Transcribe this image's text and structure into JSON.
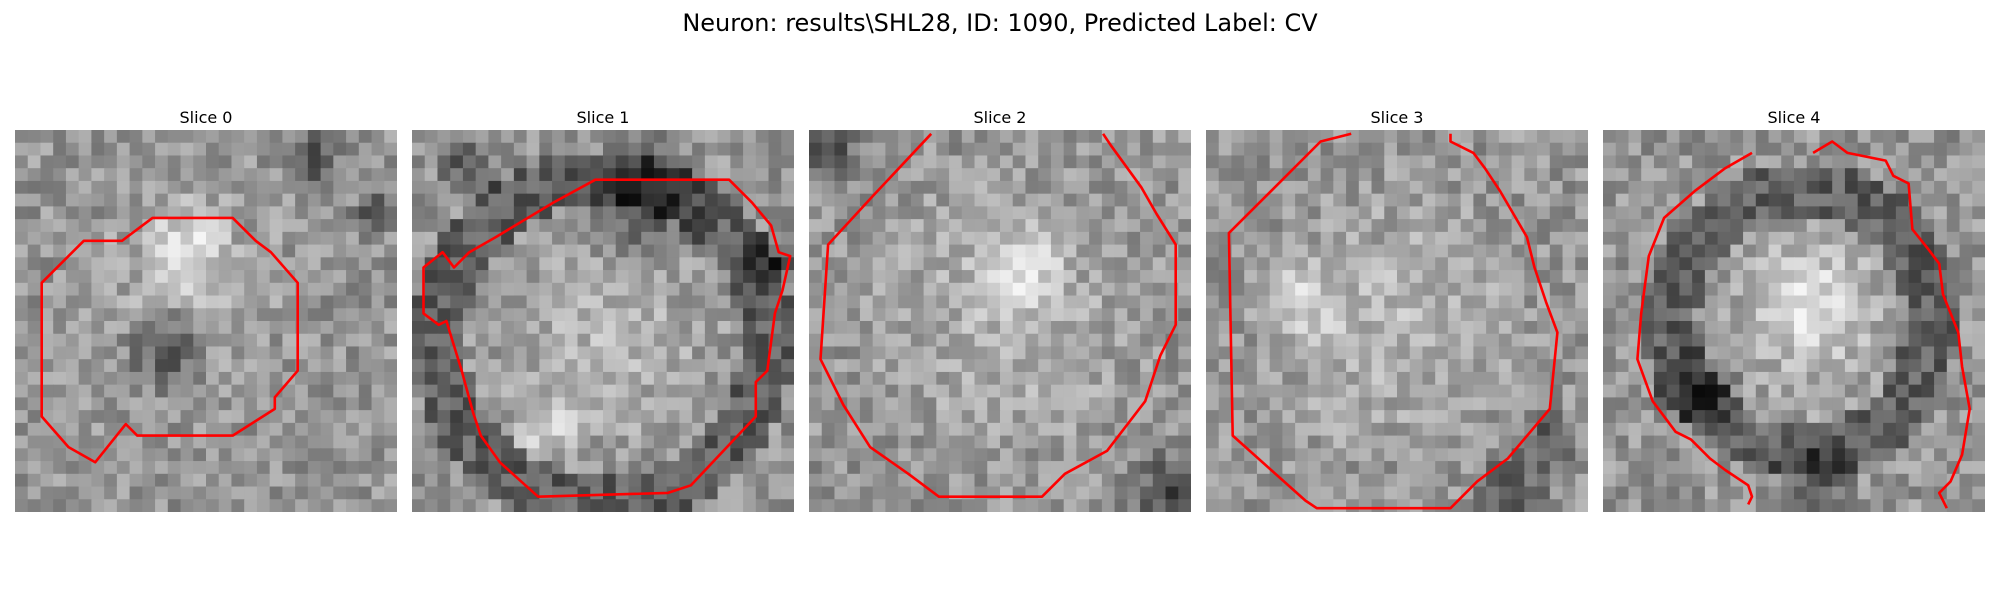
{
  "figure": {
    "title": "Neuron: results\\SHL28, ID: 1090, Predicted Label: CV"
  },
  "image_description": "Five grayscale microscopy image slices (30x30 pixel grid) of a neuron cell body with red contour outlines of the segmented soma.",
  "colors": {
    "contour": "#ff0000",
    "background": "#ffffff"
  },
  "panels": [
    {
      "title": "Slice 0"
    },
    {
      "title": "Slice 1"
    },
    {
      "title": "Slice 2"
    },
    {
      "title": "Slice 3"
    },
    {
      "title": "Slice 4"
    }
  ]
}
